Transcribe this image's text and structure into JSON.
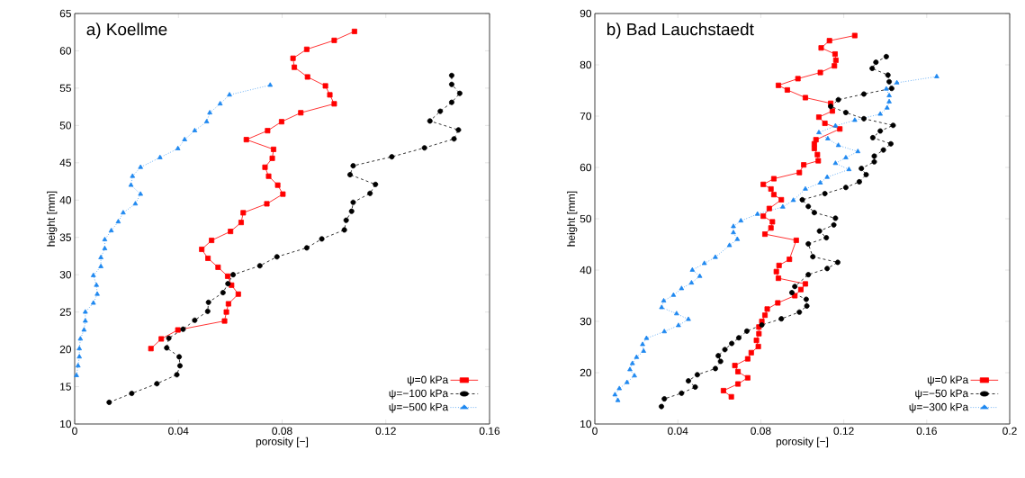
{
  "chart_data": [
    {
      "type": "line",
      "title": "a) Koellme",
      "xlabel": "porosity [−]",
      "ylabel": "height [mm]",
      "xlim": [
        0,
        0.16
      ],
      "ylim": [
        10,
        65
      ],
      "xticks": [
        0,
        0.04,
        0.08,
        0.12,
        0.16
      ],
      "yticks": [
        10,
        15,
        20,
        25,
        30,
        35,
        40,
        45,
        50,
        55,
        60,
        65
      ],
      "legend": "bottom right",
      "series": [
        {
          "name": "ψ=0 kPa",
          "color": "#ff0000",
          "marker": "square",
          "line_style": "solid",
          "x": [
            0.0294,
            0.0334,
            0.0398,
            0.0578,
            0.0585,
            0.0593,
            0.0631,
            0.0605,
            0.059,
            0.0553,
            0.0514,
            0.049,
            0.0528,
            0.0601,
            0.0642,
            0.065,
            0.0741,
            0.0803,
            0.0783,
            0.0748,
            0.0734,
            0.0762,
            0.0767,
            0.0662,
            0.0744,
            0.0798,
            0.0872,
            0.1001,
            0.0984,
            0.0967,
            0.0898,
            0.0847,
            0.0842,
            0.0895,
            0.1001,
            0.1079
          ],
          "values": [
            20.1,
            21.4,
            22.6,
            23.8,
            25.0,
            26.1,
            27.4,
            28.6,
            29.8,
            31.0,
            32.2,
            33.4,
            34.6,
            35.8,
            37.0,
            38.3,
            39.5,
            40.8,
            42.0,
            43.2,
            44.4,
            45.6,
            46.8,
            48.1,
            49.3,
            50.5,
            51.7,
            52.9,
            54.1,
            55.3,
            56.5,
            57.8,
            59.0,
            60.2,
            61.4,
            62.6
          ]
        },
        {
          "name": "ψ=−100 kPa",
          "color": "#000000",
          "marker": "circle",
          "line_style": "dashed",
          "x": [
            0.0133,
            0.022,
            0.0317,
            0.0394,
            0.0406,
            0.0403,
            0.0355,
            0.0363,
            0.0418,
            0.0463,
            0.0513,
            0.0516,
            0.0572,
            0.0591,
            0.0611,
            0.0714,
            0.078,
            0.0895,
            0.0953,
            0.104,
            0.1047,
            0.1068,
            0.1074,
            0.1139,
            0.116,
            0.1062,
            0.1074,
            0.1223,
            0.1349,
            0.1463,
            0.148,
            0.137,
            0.141,
            0.1454,
            0.1485,
            0.1454,
            0.1454
          ],
          "values": [
            12.9,
            14.1,
            15.4,
            16.6,
            17.8,
            19.0,
            20.2,
            21.5,
            22.7,
            23.9,
            25.1,
            26.3,
            27.6,
            28.8,
            30.0,
            31.2,
            32.4,
            33.6,
            34.8,
            36.0,
            37.3,
            38.5,
            39.7,
            40.9,
            42.1,
            43.4,
            44.6,
            45.8,
            47.0,
            48.2,
            49.4,
            50.6,
            51.9,
            53.1,
            54.3,
            55.5,
            56.7
          ]
        },
        {
          "name": "ψ=−500 kPa",
          "color": "#1e88f0",
          "marker": "triangle",
          "line_style": "dotted",
          "x": [
            0.0007,
            0.0013,
            0.0018,
            0.0018,
            0.0022,
            0.0036,
            0.0041,
            0.0041,
            0.0072,
            0.0087,
            0.0084,
            0.0072,
            0.0101,
            0.0101,
            0.0116,
            0.0116,
            0.0141,
            0.0168,
            0.0187,
            0.0234,
            0.0254,
            0.0217,
            0.0223,
            0.0254,
            0.0329,
            0.0398,
            0.0424,
            0.0463,
            0.0509,
            0.0521,
            0.0561,
            0.0597,
            0.0754
          ],
          "values": [
            16.5,
            17.8,
            19.0,
            20.1,
            21.4,
            22.6,
            23.8,
            25.0,
            26.2,
            27.4,
            28.6,
            29.9,
            31.1,
            32.3,
            33.5,
            34.7,
            35.9,
            37.1,
            38.3,
            39.5,
            40.8,
            42.0,
            43.2,
            44.4,
            45.7,
            46.9,
            48.1,
            49.3,
            50.5,
            51.7,
            52.9,
            54.1,
            55.4
          ]
        }
      ]
    },
    {
      "type": "line",
      "title": "b) Bad Lauchstaedt",
      "xlabel": "porosity [−]",
      "ylabel": "height [mm]",
      "xlim": [
        0,
        0.2
      ],
      "ylim": [
        10,
        90
      ],
      "xticks": [
        0,
        0.04,
        0.08,
        0.12,
        0.16,
        0.2
      ],
      "yticks": [
        10,
        20,
        30,
        40,
        50,
        60,
        70,
        80,
        90
      ],
      "legend": "bottom right",
      "series": [
        {
          "name": "ψ=0 kPa",
          "color": "#ff0000",
          "marker": "square",
          "line_style": "solid",
          "x": [
            0.0658,
            0.062,
            0.069,
            0.0737,
            0.069,
            0.0675,
            0.0737,
            0.0754,
            0.0788,
            0.0779,
            0.0791,
            0.0791,
            0.0805,
            0.082,
            0.0831,
            0.0882,
            0.0964,
            0.0993,
            0.1015,
            0.0885,
            0.0875,
            0.0888,
            0.0938,
            0.0971,
            0.082,
            0.0849,
            0.0856,
            0.0812,
            0.0841,
            0.0899,
            0.0863,
            0.0849,
            0.0812,
            0.0863,
            0.0986,
            0.1007,
            0.1077,
            0.1073,
            0.1058,
            0.1058,
            0.1066,
            0.1181,
            0.1109,
            0.108,
            0.1145,
            0.1137,
            0.1015,
            0.0928,
            0.0885,
            0.0979,
            0.1087,
            0.1155,
            0.1162,
            0.1158,
            0.1091,
            0.1131,
            0.1253
          ],
          "values": [
            15.3,
            16.5,
            17.8,
            19.0,
            20.2,
            21.4,
            22.7,
            23.9,
            25.1,
            26.3,
            27.6,
            28.9,
            30.0,
            31.2,
            32.4,
            33.6,
            35.0,
            36.2,
            37.3,
            38.4,
            39.7,
            40.9,
            42.1,
            45.8,
            47.0,
            48.2,
            49.4,
            50.5,
            52.0,
            53.7,
            54.7,
            55.8,
            56.7,
            57.8,
            59.0,
            60.5,
            61.3,
            62.5,
            63.7,
            64.6,
            65.4,
            67.5,
            68.6,
            69.8,
            71.0,
            72.5,
            73.6,
            75.1,
            76.0,
            77.3,
            78.5,
            79.8,
            80.9,
            82.1,
            83.3,
            84.7,
            85.7
          ]
        },
        {
          "name": "ψ=−50 kPa",
          "color": "#000000",
          "marker": "circle",
          "line_style": "dashed",
          "x": [
            0.0321,
            0.0335,
            0.0418,
            0.0484,
            0.0451,
            0.0494,
            0.0581,
            0.0606,
            0.0595,
            0.0627,
            0.066,
            0.0694,
            0.0733,
            0.0805,
            0.0899,
            0.0986,
            0.1022,
            0.1019,
            0.095,
            0.0964,
            0.1029,
            0.112,
            0.1171,
            0.1051,
            0.1029,
            0.1116,
            0.1083,
            0.1152,
            0.116,
            0.1058,
            0.1029,
            0.1,
            0.1109,
            0.121,
            0.1275,
            0.1308,
            0.1285,
            0.1347,
            0.1347,
            0.1391,
            0.1427,
            0.134,
            0.1376,
            0.1438,
            0.1297,
            0.121,
            0.1137,
            0.1174,
            0.1297,
            0.1431,
            0.1419,
            0.1413,
            0.1337,
            0.1355,
            0.1405
          ],
          "values": [
            13.4,
            14.9,
            16.0,
            17.2,
            18.4,
            19.6,
            20.8,
            22.2,
            23.3,
            24.5,
            25.7,
            26.8,
            28.1,
            29.3,
            30.5,
            31.8,
            33.0,
            34.3,
            35.6,
            36.8,
            39.1,
            40.3,
            41.5,
            42.6,
            45.1,
            46.3,
            47.6,
            48.8,
            50.1,
            51.2,
            52.4,
            53.7,
            54.9,
            56.1,
            57.2,
            58.6,
            59.8,
            61.1,
            62.2,
            63.4,
            64.6,
            65.8,
            67.1,
            68.2,
            69.5,
            70.7,
            71.9,
            73.2,
            74.3,
            75.4,
            76.7,
            78.0,
            79.3,
            80.5,
            81.6
          ]
        },
        {
          "name": "ψ=−300 kPa",
          "color": "#1e88f0",
          "marker": "triangle",
          "line_style": "dotted",
          "x": [
            0.0111,
            0.0097,
            0.0118,
            0.0155,
            0.0191,
            0.0169,
            0.0181,
            0.0201,
            0.0235,
            0.023,
            0.0249,
            0.0335,
            0.0403,
            0.0451,
            0.0394,
            0.0322,
            0.0332,
            0.0379,
            0.0418,
            0.0466,
            0.0506,
            0.047,
            0.0528,
            0.0581,
            0.0649,
            0.0687,
            0.0668,
            0.0668,
            0.0704,
            0.0784,
            0.0906,
            0.0957,
            0.1015,
            0.1087,
            0.112,
            0.1225,
            0.116,
            0.121,
            0.1268,
            0.1174,
            0.1123,
            0.108,
            0.116,
            0.1253,
            0.1376,
            0.1409,
            0.1419,
            0.1419,
            0.1405,
            0.1456,
            0.1648
          ],
          "values": [
            14.6,
            15.7,
            16.9,
            18.1,
            19.4,
            20.6,
            21.8,
            23.0,
            24.2,
            25.5,
            26.7,
            28.0,
            29.2,
            30.4,
            31.5,
            32.7,
            34.0,
            35.1,
            36.4,
            37.5,
            38.8,
            40.0,
            41.3,
            42.5,
            44.8,
            46.0,
            47.3,
            48.5,
            49.6,
            50.9,
            52.3,
            53.6,
            55.8,
            57.0,
            58.1,
            59.6,
            60.8,
            61.9,
            63.1,
            64.3,
            65.6,
            66.8,
            68.1,
            69.2,
            70.4,
            71.6,
            72.8,
            74.0,
            75.3,
            76.5,
            77.7
          ]
        }
      ]
    }
  ]
}
